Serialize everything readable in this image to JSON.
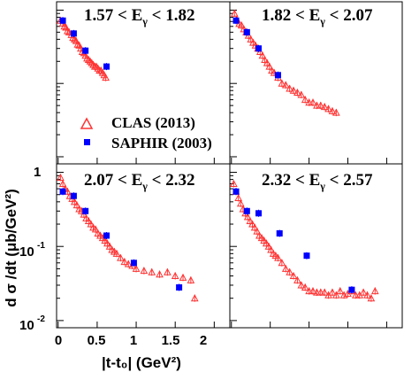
{
  "chart_data": [
    {
      "type": "scatter",
      "panel": "top-left",
      "title": {
        "lhs": "1.57 < E",
        "sub": "γ",
        "rhs": " < 1.82"
      },
      "series": [
        {
          "name": "CLAS (2013)",
          "marker": "open-triangle",
          "color": "#ff3333",
          "x": [
            0.03,
            0.06,
            0.08,
            0.1,
            0.12,
            0.14,
            0.17,
            0.19,
            0.21,
            0.23,
            0.25,
            0.27,
            0.29,
            0.31,
            0.33,
            0.35,
            0.37,
            0.39,
            0.41,
            0.43,
            0.45,
            0.47,
            0.49,
            0.51,
            0.53,
            0.55,
            0.57,
            0.59,
            0.61
          ],
          "y": [
            0.72,
            0.66,
            0.6,
            0.58,
            0.52,
            0.5,
            0.46,
            0.42,
            0.4,
            0.38,
            0.34,
            0.33,
            0.3,
            0.27,
            0.26,
            0.24,
            0.22,
            0.21,
            0.2,
            0.19,
            0.18,
            0.17,
            0.17,
            0.16,
            0.15,
            0.15,
            0.14,
            0.13,
            0.12
          ]
        },
        {
          "name": "SAPHIR (2003)",
          "marker": "filled-square",
          "color": "#0000ff",
          "x": [
            0.06,
            0.2,
            0.35,
            0.62
          ],
          "y": [
            0.72,
            0.48,
            0.28,
            0.17
          ]
        }
      ]
    },
    {
      "type": "scatter",
      "panel": "top-right",
      "title": {
        "lhs": "1.82 < ",
        "sub": "γ",
        "rhs": " < 2.07",
        "e": "E"
      },
      "series": [
        {
          "name": "CLAS (2013)",
          "marker": "open-triangle",
          "color": "#ff3333",
          "x": [
            0.04,
            0.07,
            0.1,
            0.13,
            0.16,
            0.19,
            0.22,
            0.25,
            0.28,
            0.31,
            0.34,
            0.37,
            0.4,
            0.43,
            0.46,
            0.49,
            0.52,
            0.55,
            0.6,
            0.65,
            0.7,
            0.75,
            0.8,
            0.85,
            0.9,
            0.95,
            1.0,
            1.05,
            1.1,
            1.15,
            1.2,
            1.25,
            1.3,
            1.35
          ],
          "y": [
            0.9,
            0.75,
            0.65,
            0.62,
            0.55,
            0.5,
            0.45,
            0.4,
            0.36,
            0.33,
            0.3,
            0.27,
            0.24,
            0.21,
            0.19,
            0.17,
            0.15,
            0.14,
            0.12,
            0.1,
            0.095,
            0.085,
            0.08,
            0.075,
            0.07,
            0.06,
            0.055,
            0.055,
            0.05,
            0.05,
            0.048,
            0.045,
            0.042,
            0.04
          ]
        },
        {
          "name": "SAPHIR (2003)",
          "marker": "filled-square",
          "color": "#0000ff",
          "x": [
            0.06,
            0.2,
            0.35,
            0.6
          ],
          "y": [
            0.72,
            0.5,
            0.3,
            0.13
          ]
        }
      ]
    },
    {
      "type": "scatter",
      "panel": "bottom-left",
      "title": {
        "lhs": "2.07 < E",
        "sub": "γ",
        "rhs": " < 2.32"
      },
      "xlabel": "|t-t₀| (GeV²)",
      "xticks": [
        "0",
        "0.5",
        "1",
        "1.5",
        "2"
      ],
      "ylabel": "d σ /dt (μb/GeV²)",
      "ylim": [
        0.01,
        1.3
      ],
      "yscale": "log",
      "series": [
        {
          "name": "CLAS (2013)",
          "marker": "open-triangle",
          "color": "#ff3333",
          "x": [
            0.03,
            0.06,
            0.09,
            0.12,
            0.15,
            0.18,
            0.21,
            0.24,
            0.27,
            0.3,
            0.33,
            0.36,
            0.39,
            0.42,
            0.45,
            0.48,
            0.51,
            0.54,
            0.57,
            0.6,
            0.63,
            0.66,
            0.69,
            0.72,
            0.75,
            0.8,
            0.85,
            0.9,
            0.95,
            1.0,
            1.1,
            1.2,
            1.3,
            1.4,
            1.5,
            1.6,
            1.7,
            1.75
          ],
          "y": [
            0.85,
            0.7,
            0.6,
            0.55,
            0.48,
            0.44,
            0.4,
            0.36,
            0.32,
            0.3,
            0.27,
            0.24,
            0.22,
            0.2,
            0.18,
            0.17,
            0.15,
            0.14,
            0.13,
            0.12,
            0.11,
            0.1,
            0.09,
            0.085,
            0.08,
            0.07,
            0.062,
            0.058,
            0.055,
            0.05,
            0.047,
            0.045,
            0.042,
            0.045,
            0.04,
            0.038,
            0.035,
            0.02
          ]
        },
        {
          "name": "SAPHIR (2003)",
          "marker": "filled-square",
          "color": "#0000ff",
          "x": [
            0.06,
            0.2,
            0.35,
            0.62,
            0.97,
            1.55
          ],
          "y": [
            0.55,
            0.48,
            0.3,
            0.14,
            0.06,
            0.028
          ]
        }
      ]
    },
    {
      "type": "scatter",
      "panel": "bottom-right",
      "title": {
        "lhs": "2.32 < E",
        "sub": "γ",
        "rhs": " < 2.57"
      },
      "series": [
        {
          "name": "CLAS (2013)",
          "marker": "open-triangle",
          "color": "#ff3333",
          "x": [
            0.03,
            0.06,
            0.09,
            0.12,
            0.15,
            0.18,
            0.21,
            0.24,
            0.27,
            0.3,
            0.33,
            0.36,
            0.39,
            0.42,
            0.45,
            0.48,
            0.51,
            0.54,
            0.57,
            0.6,
            0.65,
            0.7,
            0.75,
            0.8,
            0.85,
            0.9,
            0.95,
            1.0,
            1.05,
            1.1,
            1.15,
            1.2,
            1.25,
            1.3,
            1.35,
            1.4,
            1.45,
            1.5,
            1.55,
            1.6,
            1.65,
            1.7,
            1.75,
            1.8,
            1.85
          ],
          "y": [
            0.7,
            0.55,
            0.45,
            0.38,
            0.32,
            0.28,
            0.25,
            0.22,
            0.2,
            0.18,
            0.16,
            0.14,
            0.13,
            0.12,
            0.11,
            0.1,
            0.09,
            0.08,
            0.075,
            0.07,
            0.06,
            0.05,
            0.045,
            0.04,
            0.035,
            0.03,
            0.028,
            0.025,
            0.025,
            0.024,
            0.024,
            0.024,
            0.022,
            0.024,
            0.022,
            0.025,
            0.022,
            0.023,
            0.025,
            0.022,
            0.022,
            0.024,
            0.022,
            0.02,
            0.025
          ]
        },
        {
          "name": "SAPHIR (2003)",
          "marker": "filled-square",
          "color": "#0000ff",
          "x": [
            0.06,
            0.2,
            0.35,
            0.62,
            0.97,
            1.55
          ],
          "y": [
            0.55,
            0.3,
            0.28,
            0.15,
            0.075,
            0.026
          ]
        }
      ]
    }
  ],
  "legend": {
    "clas": "CLAS (2013)",
    "saphir": "SAPHIR (2003)"
  },
  "colors": {
    "clas": "#ff3333",
    "saphir": "#0000ff"
  }
}
